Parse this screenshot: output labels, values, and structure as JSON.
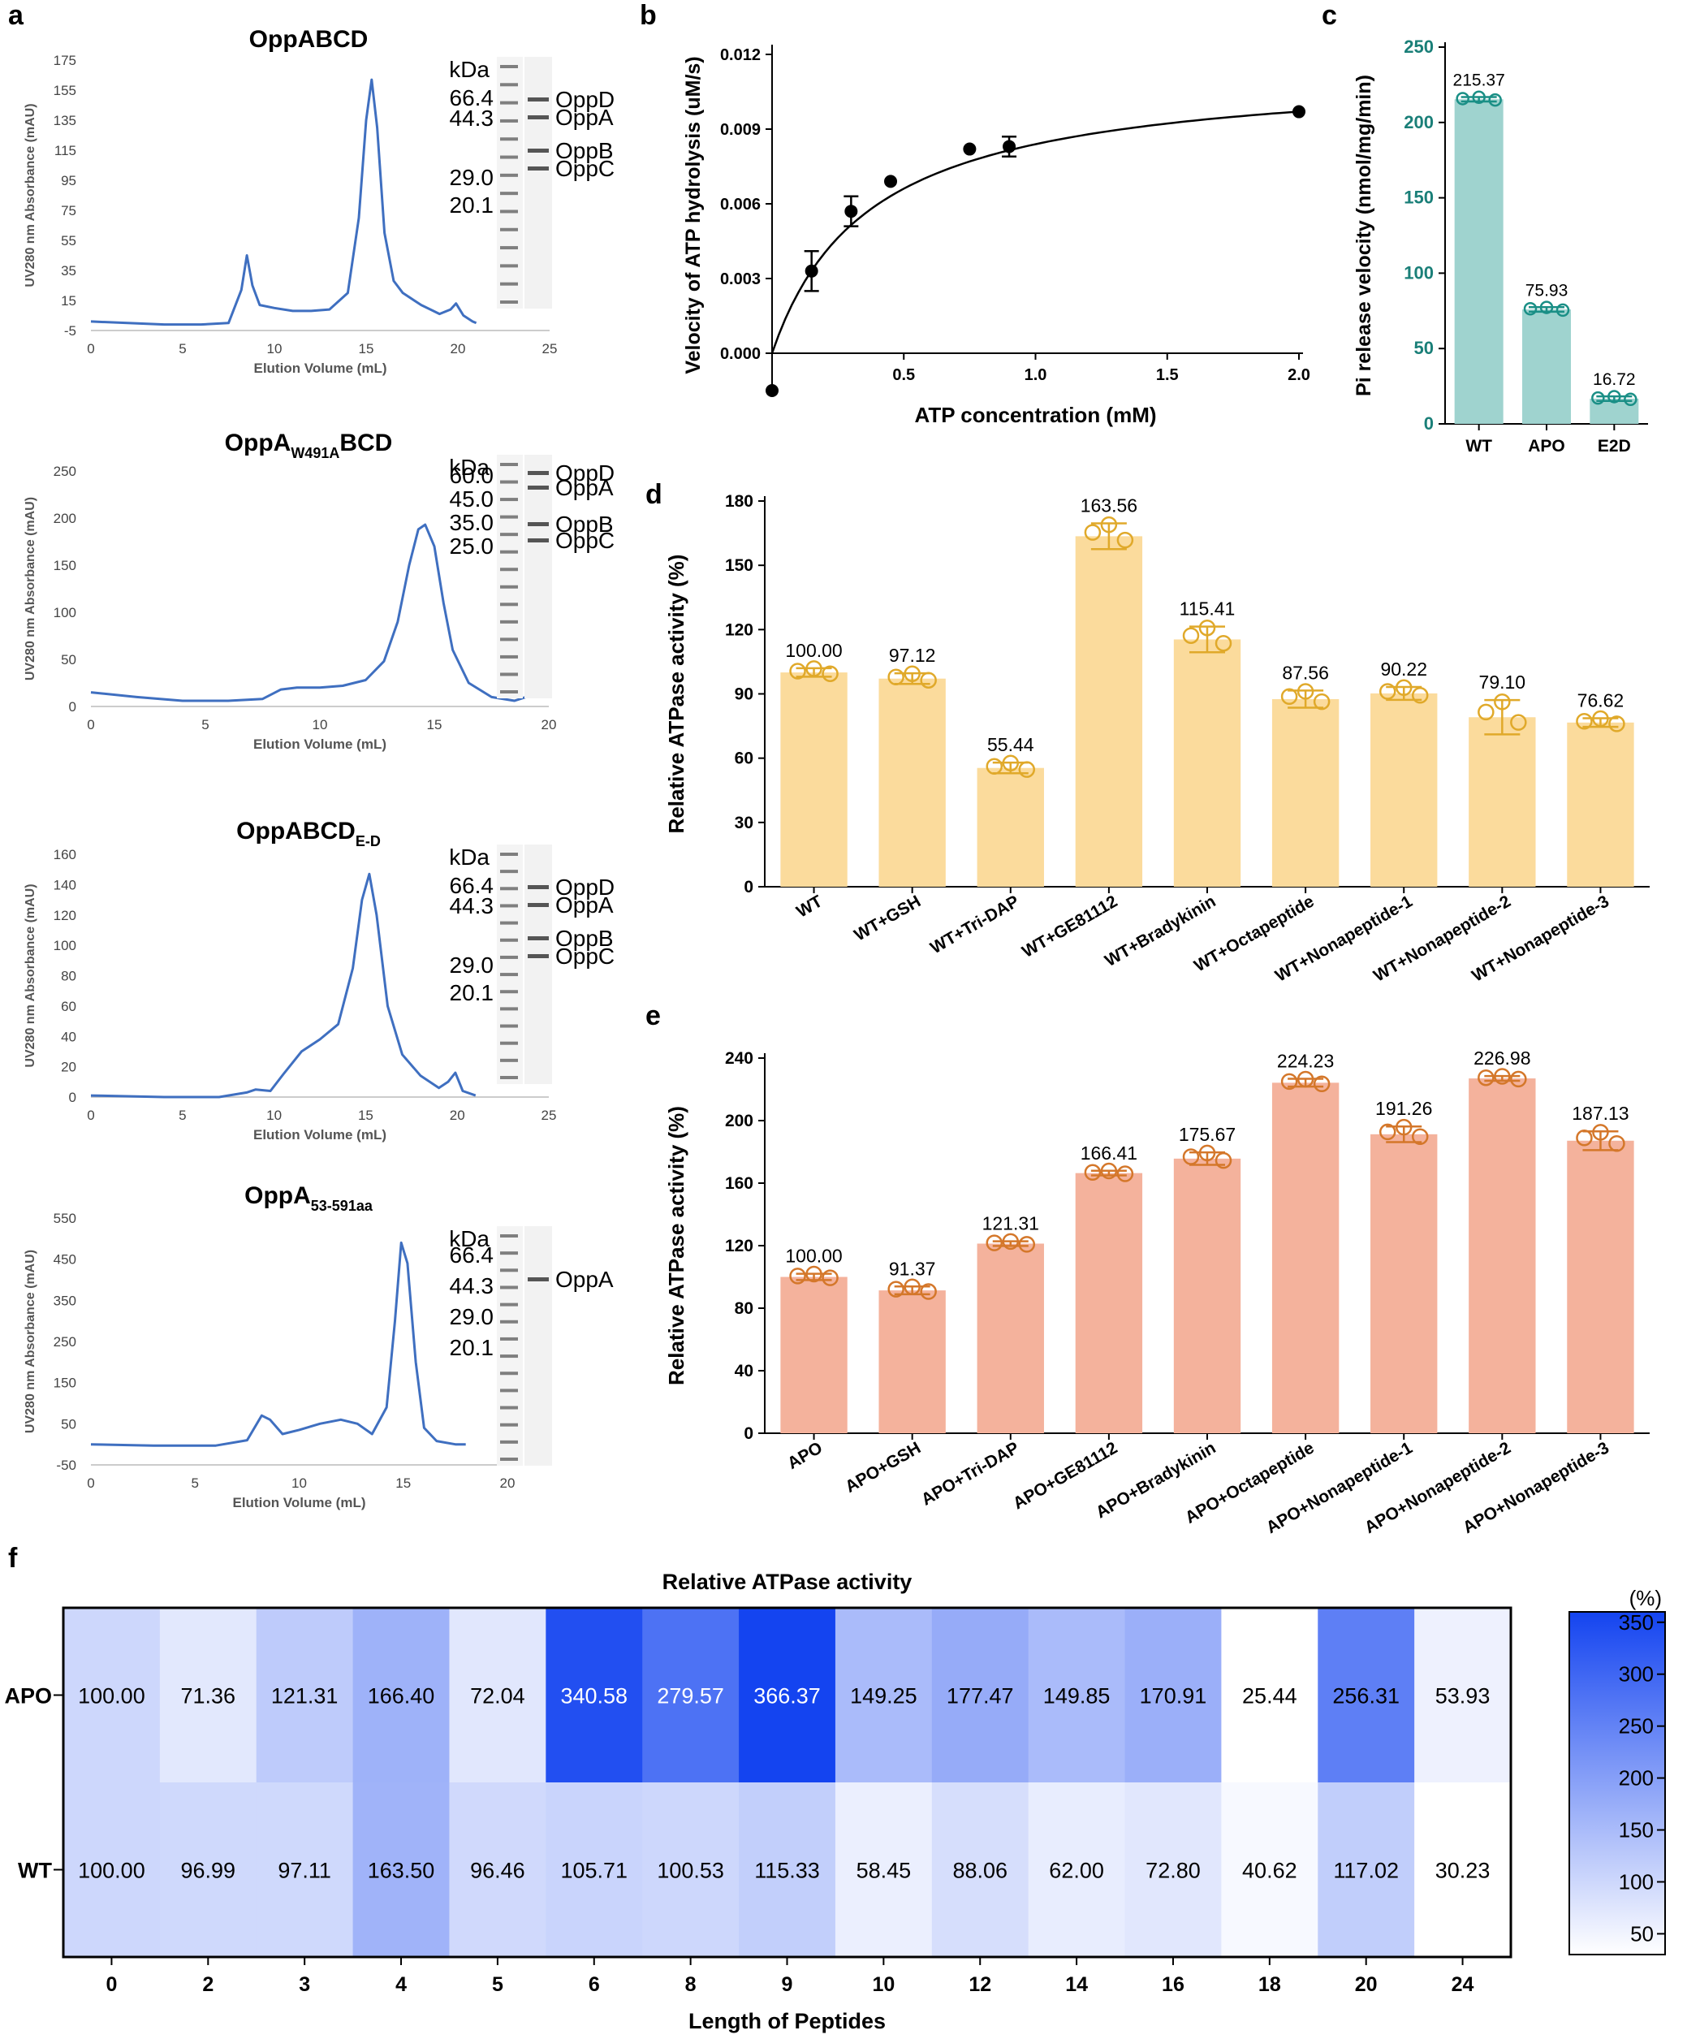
{
  "panel_letters": {
    "a": "a",
    "b": "b",
    "c": "c",
    "d": "d",
    "e": "e",
    "f": "f"
  },
  "chart_data": [
    {
      "id": "a1",
      "type": "line",
      "title": "OppABCD",
      "xlabel": "Elution Volume (mL)",
      "ylabel": "UV280 nm Absorbance (mAU)",
      "xlim": [
        0,
        25
      ],
      "ylim": [
        -5,
        175
      ],
      "x_ticks": [
        0,
        5,
        10,
        15,
        20,
        25
      ],
      "y_ticks": [
        -5,
        15,
        35,
        55,
        75,
        95,
        115,
        135,
        155,
        175
      ],
      "x": [
        0,
        2,
        4,
        6,
        7.5,
        8.2,
        8.5,
        8.8,
        9.2,
        10,
        11,
        12,
        13,
        14,
        14.6,
        15,
        15.3,
        15.6,
        16,
        16.5,
        17,
        18,
        19,
        19.6,
        19.9,
        20.3,
        20.8,
        21
      ],
      "y": [
        1,
        0,
        -1,
        -1,
        0,
        22,
        45,
        25,
        12,
        10,
        8,
        8,
        9,
        20,
        70,
        135,
        162,
        130,
        60,
        28,
        20,
        12,
        6,
        9,
        13,
        5,
        1,
        0
      ],
      "gel": {
        "unit": "kDa",
        "markers": [
          "66.4",
          "44.3",
          "29.0",
          "20.1"
        ],
        "bands": [
          "OppD",
          "OppA",
          "OppB",
          "OppC"
        ]
      }
    },
    {
      "id": "a2",
      "type": "line",
      "title_main": "OppA",
      "title_sub": "W491A",
      "title_tail": "BCD",
      "xlabel": "Elution Volume (mL)",
      "ylabel": "UV280 nm Absorbance (mAU)",
      "xlim": [
        0,
        20
      ],
      "ylim": [
        0,
        250
      ],
      "x_ticks": [
        0,
        5,
        10,
        15,
        20
      ],
      "y_ticks": [
        0,
        50,
        100,
        150,
        200,
        250
      ],
      "x": [
        0,
        2,
        4,
        6,
        7.5,
        8.3,
        9,
        10,
        11,
        12,
        12.8,
        13.4,
        13.9,
        14.3,
        14.6,
        15,
        15.4,
        15.8,
        16.5,
        17.5,
        18.5,
        19
      ],
      "y": [
        15,
        10,
        6,
        6,
        8,
        18,
        20,
        20,
        22,
        28,
        48,
        90,
        150,
        188,
        193,
        170,
        110,
        60,
        25,
        10,
        6,
        10
      ],
      "gel": {
        "unit": "kDa",
        "markers": [
          "60.0",
          "45.0",
          "35.0",
          "25.0"
        ],
        "bands": [
          "OppD",
          "OppA",
          "OppB",
          "OppC"
        ]
      }
    },
    {
      "id": "a3",
      "type": "line",
      "title_main": "OppABCD",
      "title_sub": "E-D",
      "xlabel": "Elution Volume (mL)",
      "ylabel": "UV280 nm Absorbance (mAU)",
      "xlim": [
        0,
        25
      ],
      "ylim": [
        0,
        160
      ],
      "x_ticks": [
        0,
        5,
        10,
        15,
        20,
        25
      ],
      "y_ticks": [
        0,
        20,
        40,
        60,
        80,
        100,
        120,
        140,
        160
      ],
      "x": [
        0,
        4,
        7,
        8.5,
        9,
        9.8,
        10.5,
        11.5,
        12.5,
        13.5,
        14.3,
        14.8,
        15.2,
        15.6,
        16.2,
        17,
        18,
        19,
        19.5,
        19.9,
        20.3,
        21
      ],
      "y": [
        1,
        0,
        0,
        3,
        5,
        4,
        15,
        30,
        38,
        48,
        85,
        130,
        147,
        120,
        60,
        28,
        14,
        6,
        10,
        16,
        4,
        1
      ],
      "gel": {
        "unit": "kDa",
        "markers": [
          "66.4",
          "44.3",
          "29.0",
          "20.1"
        ],
        "bands": [
          "OppD",
          "OppA",
          "OppB",
          "OppC"
        ]
      }
    },
    {
      "id": "a4",
      "type": "line",
      "title_main": "OppA",
      "title_sub": "53-591aa",
      "xlabel": "Elution Volume (mL)",
      "ylabel": "UV280 nm Absorbance (mAU)",
      "xlim": [
        0,
        20
      ],
      "ylim": [
        -50,
        550
      ],
      "x_ticks": [
        0,
        5,
        10,
        15,
        20
      ],
      "y_ticks": [
        -50,
        50,
        150,
        250,
        350,
        450,
        550
      ],
      "x": [
        0,
        3,
        6,
        7.5,
        8.2,
        8.6,
        9.2,
        10,
        11,
        12,
        12.8,
        13.5,
        14.2,
        14.6,
        14.9,
        15.2,
        15.6,
        16,
        16.6,
        17.5,
        18
      ],
      "y": [
        0,
        -3,
        -3,
        10,
        70,
        60,
        25,
        35,
        50,
        60,
        50,
        25,
        90,
        300,
        490,
        440,
        200,
        40,
        8,
        0,
        0
      ],
      "gel": {
        "unit": "kDa",
        "markers": [
          "66.4",
          "44.3",
          "29.0",
          "20.1"
        ],
        "bands": [
          "OppA"
        ]
      }
    },
    {
      "id": "b",
      "type": "scatter",
      "xlabel": "ATP concentration (mM)",
      "ylabel": "Velocity of ATP hydrolysis (uM/s)",
      "xlim": [
        0,
        2.0
      ],
      "ylim": [
        0,
        0.012
      ],
      "x_tick_labels": [
        "0.5",
        "1.0",
        "1.5",
        "2.0"
      ],
      "y_tick_labels": [
        "0.000",
        "0.003",
        "0.006",
        "0.009",
        "0.012"
      ],
      "points": [
        {
          "x": 0.0,
          "y": -0.0015,
          "err": 0
        },
        {
          "x": 0.15,
          "y": 0.0033,
          "err": 0.0008
        },
        {
          "x": 0.3,
          "y": 0.0057,
          "err": 0.0006
        },
        {
          "x": 0.45,
          "y": 0.0069,
          "err": 0
        },
        {
          "x": 0.75,
          "y": 0.0082,
          "err": 0
        },
        {
          "x": 0.9,
          "y": 0.0083,
          "err": 0.0004
        },
        {
          "x": 2.0,
          "y": 0.0097,
          "err": 0
        }
      ],
      "fit": {
        "model": "Michaelis-Menten",
        "vmax": 0.0115,
        "km": 0.37
      }
    },
    {
      "id": "c",
      "type": "bar",
      "ylabel": "Pi release velocity (nmol/mg/min)",
      "ylim": [
        0,
        250
      ],
      "y_ticks": [
        0,
        50,
        100,
        150,
        200,
        250
      ],
      "categories": [
        "WT",
        "APO",
        "E2D"
      ],
      "values": [
        215.37,
        75.93,
        16.72
      ],
      "labels": [
        "215.37",
        "75.93",
        "16.72"
      ],
      "bar_color": "#9fd3cf",
      "point_color": "#1a8f86"
    },
    {
      "id": "d",
      "type": "bar",
      "ylabel": "Relative ATPase activity (%)",
      "ylim": [
        0,
        180
      ],
      "y_ticks": [
        0,
        30,
        60,
        90,
        120,
        150,
        180
      ],
      "categories": [
        "WT",
        "WT+GSH",
        "WT+Tri-DAP",
        "WT+GE81112",
        "WT+Bradykinin",
        "WT+Octapeptide",
        "WT+Nonapeptide-1",
        "WT+Nonapeptide-2",
        "WT+Nonapeptide-3"
      ],
      "values": [
        100.0,
        97.12,
        55.44,
        163.56,
        115.41,
        87.56,
        90.22,
        79.1,
        76.62
      ],
      "labels": [
        "100.00",
        "97.12",
        "55.44",
        "163.56",
        "115.41",
        "87.56",
        "90.22",
        "79.10",
        "76.62"
      ],
      "errors": [
        2,
        2.5,
        2.5,
        6,
        6,
        4,
        3,
        8,
        2
      ],
      "bar_color": "#fbdb9c",
      "point_color": "#e0a92a"
    },
    {
      "id": "e",
      "type": "bar",
      "ylabel": "Relative ATPase activity (%)",
      "ylim": [
        0,
        240
      ],
      "y_ticks": [
        0,
        40,
        80,
        120,
        160,
        200,
        240
      ],
      "categories": [
        "APO",
        "APO+GSH",
        "APO+Tri-DAP",
        "APO+GE81112",
        "APO+Bradykinin",
        "APO+Octapeptide",
        "APO+Nonapeptide-1",
        "APO+Nonapeptide-2",
        "APO+Nonapeptide-3"
      ],
      "values": [
        100.0,
        91.37,
        121.31,
        166.41,
        175.67,
        224.23,
        191.26,
        226.98,
        187.13
      ],
      "labels": [
        "100.00",
        "91.37",
        "121.31",
        "166.41",
        "175.67",
        "224.23",
        "191.26",
        "226.98",
        "187.13"
      ],
      "errors": [
        2,
        2.5,
        1.5,
        1.5,
        4,
        2.5,
        5,
        1.5,
        6
      ],
      "bar_color": "#f4b29c",
      "point_color": "#d4772a"
    },
    {
      "id": "f",
      "type": "heatmap",
      "title": "Relative ATPase activity",
      "xlabel": "Length of Peptides",
      "columns": [
        "0",
        "2",
        "3",
        "4",
        "5",
        "6",
        "8",
        "9",
        "10",
        "12",
        "14",
        "16",
        "18",
        "20",
        "24"
      ],
      "rows": [
        "APO",
        "WT"
      ],
      "values": [
        [
          100.0,
          71.36,
          121.31,
          166.4,
          72.04,
          340.58,
          279.57,
          366.37,
          149.25,
          177.47,
          149.85,
          170.91,
          25.44,
          256.31,
          53.93
        ],
        [
          100.0,
          96.99,
          97.11,
          163.5,
          96.46,
          105.71,
          100.53,
          115.33,
          58.45,
          88.06,
          62.0,
          72.8,
          40.62,
          117.02,
          30.23
        ]
      ],
      "labels": [
        [
          "100.00",
          "71.36",
          "121.31",
          "166.40",
          "72.04",
          "340.58",
          "279.57",
          "366.37",
          "149.25",
          "177.47",
          "149.85",
          "170.91",
          "25.44",
          "256.31",
          "53.93"
        ],
        [
          "100.00",
          "96.99",
          "97.11",
          "163.50",
          "96.46",
          "105.71",
          "100.53",
          "115.33",
          "58.45",
          "88.06",
          "62.00",
          "72.80",
          "40.62",
          "117.02",
          "30.23"
        ]
      ],
      "colorbar": {
        "unit": "(%)",
        "range": [
          30,
          360
        ],
        "ticks": [
          "350",
          "300",
          "250",
          "200",
          "150",
          "100",
          "50"
        ],
        "tick_values": [
          350,
          300,
          250,
          200,
          150,
          100,
          50
        ],
        "low_color": "#ffffff",
        "high_color": "#1444f0"
      }
    }
  ]
}
